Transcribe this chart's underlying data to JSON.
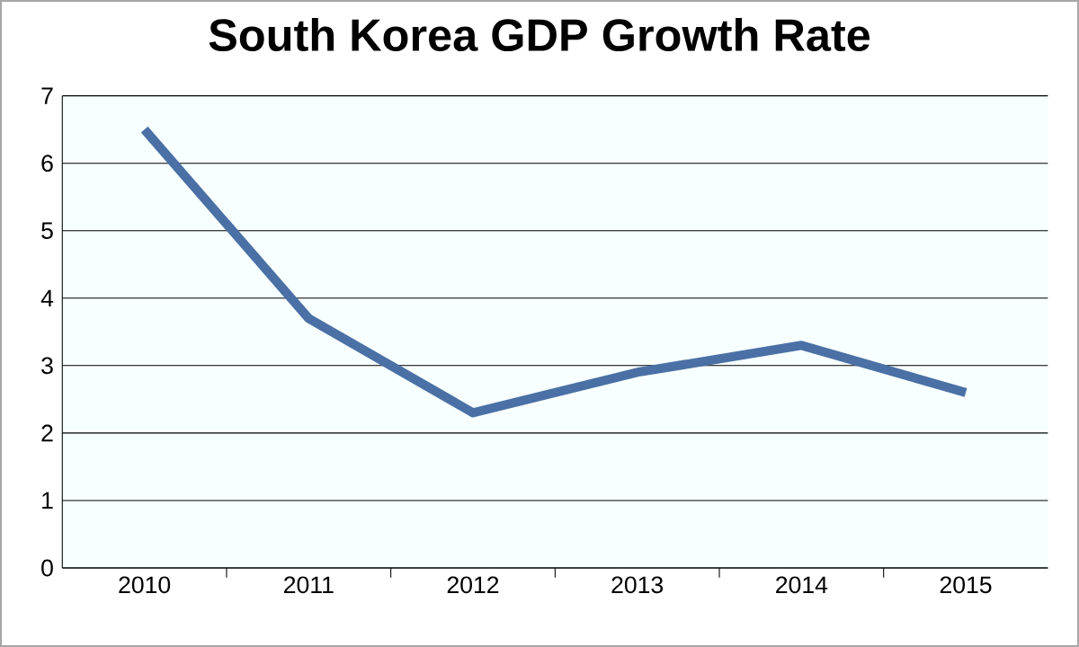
{
  "chart_data": {
    "type": "line",
    "title": "South Korea GDP Growth Rate",
    "categories": [
      "2010",
      "2011",
      "2012",
      "2013",
      "2014",
      "2015"
    ],
    "series": [
      {
        "color": "#4a70a6",
        "values": [
          6.5,
          3.7,
          2.3,
          2.9,
          3.3,
          2.6
        ]
      }
    ],
    "ylim": [
      0,
      7
    ],
    "yticks": [
      0,
      1,
      2,
      3,
      4,
      5,
      6,
      7
    ],
    "grid": "y",
    "marker": "none",
    "line_style": "solid"
  }
}
